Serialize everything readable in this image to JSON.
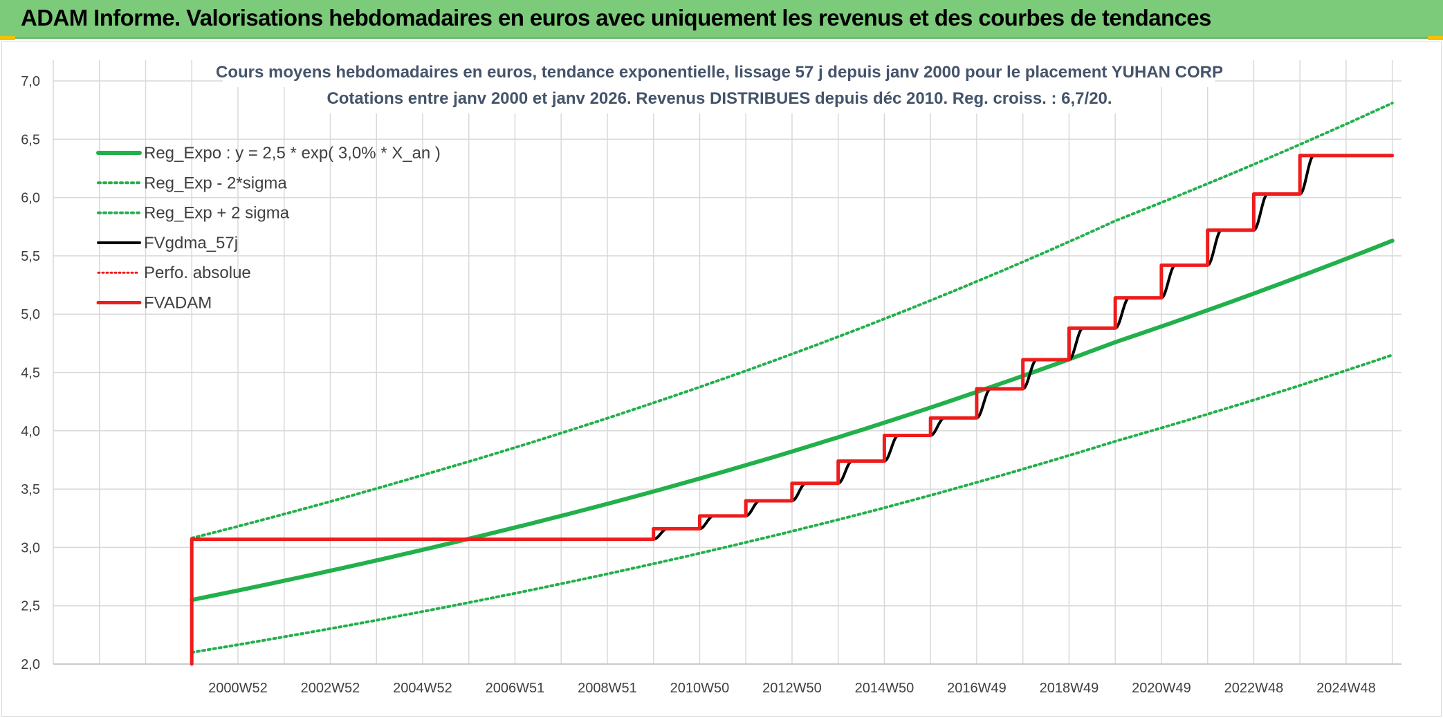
{
  "header": {
    "title": "ADAM Informe. Valorisations hebdomadaires en euros avec uniquement les revenus et des courbes de tendances"
  },
  "colors": {
    "header_bg": "#7ccb7a",
    "green": "#22b04b",
    "red": "#ee1c1c",
    "black": "#000000",
    "grid": "#d9d9d9",
    "axis_text": "#404040",
    "title_text": "#44546a"
  },
  "chart_data": {
    "type": "line",
    "title": "Cours moyens hebdomadaires en euros, tendance exponentielle, lissage 57 j depuis janv 2000 pour le placement YUHAN CORP",
    "subtitle": "Cotations entre janv 2000 et janv 2026. Revenus DISTRIBUES depuis déc 2010. Reg. croiss. : 6,7/20.",
    "xlabel": "",
    "ylabel": "",
    "x_range": [
      1997,
      2026.2
    ],
    "ylim": [
      2.0,
      7.0
    ],
    "y_ticks": [
      "2,0",
      "2,5",
      "3,0",
      "3,5",
      "4,0",
      "4,5",
      "5,0",
      "5,5",
      "6,0",
      "6,5",
      "7,0"
    ],
    "x_tick_labels": [
      "2000W52",
      "2002W52",
      "2004W52",
      "2006W51",
      "2008W51",
      "2010W50",
      "2012W50",
      "2014W50",
      "2016W49",
      "2018W49",
      "2020W49",
      "2022W48",
      "2024W48"
    ],
    "grid": true,
    "legend_position": "top-left",
    "series": [
      {
        "name": "Reg_Expo : y = 2,5 * exp( 3,0% *  X_an )",
        "color": "#22b04b",
        "style": "solid",
        "width": 6,
        "x": [
          2000.0,
          2005.0,
          2010.0,
          2015.0,
          2020.0,
          2026.0
        ],
        "values": [
          2.55,
          2.98,
          3.48,
          4.07,
          4.76,
          5.63
        ]
      },
      {
        "name": "Reg_Exp - 2*sigma",
        "color": "#22b04b",
        "style": "dotted",
        "width": 4,
        "x": [
          2000.0,
          2005.0,
          2010.0,
          2015.0,
          2020.0,
          2026.0
        ],
        "values": [
          2.1,
          2.45,
          2.86,
          3.34,
          3.91,
          4.65
        ]
      },
      {
        "name": "Reg_Exp + 2 sigma",
        "color": "#22b04b",
        "style": "dotted",
        "width": 4,
        "x": [
          2000.0,
          2005.0,
          2010.0,
          2015.0,
          2020.0,
          2026.0
        ],
        "values": [
          3.08,
          3.62,
          4.24,
          4.96,
          5.8,
          6.81
        ]
      },
      {
        "name": "FVgdma_57j",
        "color": "#000000",
        "style": "solid",
        "width": 4,
        "x": [
          2000.0,
          2010.0,
          2010.3,
          2011.0,
          2011.3,
          2012.0,
          2012.3,
          2013.0,
          2013.3,
          2014.0,
          2014.3,
          2015.0,
          2015.3,
          2016.0,
          2016.3,
          2017.0,
          2017.3,
          2018.0,
          2018.3,
          2019.0,
          2019.3,
          2020.0,
          2020.3,
          2021.0,
          2021.3,
          2022.0,
          2022.3,
          2023.0,
          2023.3,
          2024.0,
          2024.3,
          2026.0
        ],
        "values": [
          3.07,
          3.07,
          3.16,
          3.16,
          3.27,
          3.27,
          3.4,
          3.4,
          3.55,
          3.55,
          3.74,
          3.74,
          3.96,
          3.96,
          4.11,
          4.11,
          4.36,
          4.36,
          4.61,
          4.61,
          4.88,
          4.88,
          5.14,
          5.14,
          5.42,
          5.42,
          5.72,
          5.72,
          6.03,
          6.03,
          6.36,
          6.36
        ]
      },
      {
        "name": "Perfo. absolue",
        "color": "#ee1c1c",
        "style": "dotted",
        "width": 3,
        "x": [],
        "values": []
      },
      {
        "name": "FVADAM",
        "color": "#ee1c1c",
        "style": "solid",
        "width": 5,
        "x": [
          2000.0,
          2000.0,
          2010.0,
          2010.0,
          2011.0,
          2011.0,
          2012.0,
          2012.0,
          2013.0,
          2013.0,
          2014.0,
          2014.0,
          2015.0,
          2015.0,
          2016.0,
          2016.0,
          2017.0,
          2017.0,
          2018.0,
          2018.0,
          2019.0,
          2019.0,
          2020.0,
          2020.0,
          2021.0,
          2021.0,
          2022.0,
          2022.0,
          2023.0,
          2023.0,
          2024.0,
          2024.0,
          2026.0
        ],
        "values": [
          2.0,
          3.07,
          3.07,
          3.16,
          3.16,
          3.27,
          3.27,
          3.4,
          3.4,
          3.55,
          3.55,
          3.74,
          3.74,
          3.96,
          3.96,
          4.11,
          4.11,
          4.36,
          4.36,
          4.61,
          4.61,
          4.88,
          4.88,
          5.14,
          5.14,
          5.42,
          5.42,
          5.72,
          5.72,
          6.03,
          6.03,
          6.36,
          6.36
        ]
      }
    ]
  }
}
